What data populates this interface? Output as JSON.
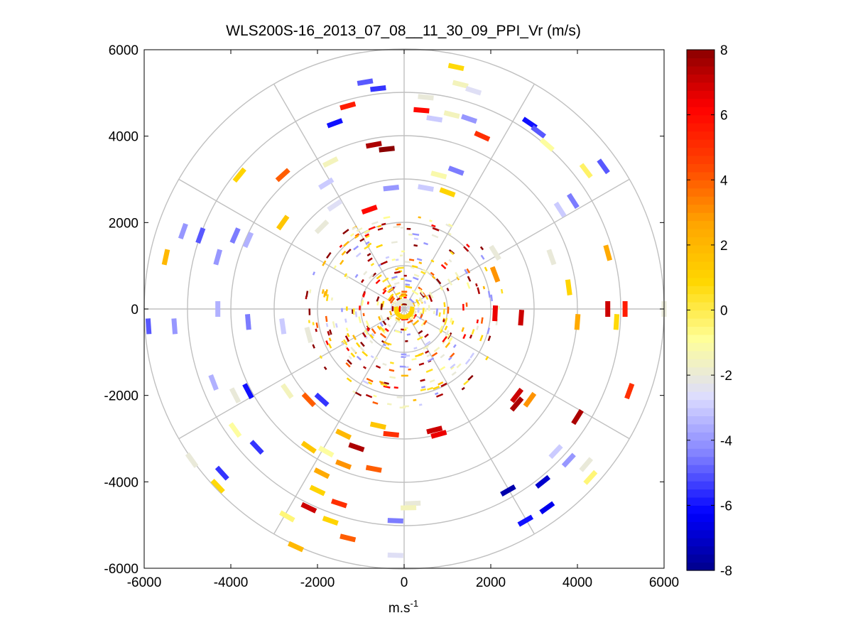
{
  "figure": {
    "background": "#ffffff"
  },
  "chart_data": {
    "type": "scatter",
    "title": "WLS200S-16_2013_07_08__11_30_09_PPI_Vr (m/s)",
    "xlabel": "m.s",
    "xlabel_sup": "-1",
    "ylabel": "",
    "xlim": [
      -6000,
      6000
    ],
    "ylim": [
      -6000,
      6000
    ],
    "xticks": [
      "-6000",
      "-4000",
      "-2000",
      "0",
      "2000",
      "4000",
      "6000"
    ],
    "yticks": [
      "6000",
      "4000",
      "2000",
      "0",
      "-2000",
      "-4000",
      "-6000"
    ],
    "grid": true,
    "polar_grid": {
      "ring_radii": [
        1000,
        2000,
        3000,
        4000,
        5000,
        6000
      ],
      "spoke_angles_deg": [
        0,
        30,
        60,
        90,
        120,
        150,
        180,
        210,
        240,
        270,
        300,
        330
      ],
      "color": "#c0c0c0"
    },
    "colorbar": {
      "min": -8,
      "max": 8,
      "ticks": [
        "8",
        "6",
        "4",
        "2",
        "0",
        "-2",
        "-4",
        "-6",
        "-8"
      ],
      "colormap": "blue-white-yellow-red",
      "stops": [
        "#00008b",
        "#0000ff",
        "#8080ff",
        "#dcdcff",
        "#ffff99",
        "#ffd700",
        "#ffa500",
        "#ff4500",
        "#ff0000",
        "#8b0000"
      ]
    },
    "point_value_units": "m/s",
    "points": [
      {
        "x": -900,
        "y": 5250,
        "v": -5
      },
      {
        "x": -600,
        "y": 5100,
        "v": -5.5
      },
      {
        "x": 1200,
        "y": 5600,
        "v": 0.8
      },
      {
        "x": 1300,
        "y": 5200,
        "v": -1.5
      },
      {
        "x": 1600,
        "y": 5050,
        "v": -2.5
      },
      {
        "x": 500,
        "y": 4900,
        "v": -2
      },
      {
        "x": 400,
        "y": 4600,
        "v": 6
      },
      {
        "x": 700,
        "y": 4400,
        "v": -3
      },
      {
        "x": 1100,
        "y": 4500,
        "v": -1.5
      },
      {
        "x": 1500,
        "y": 4400,
        "v": -4
      },
      {
        "x": -1300,
        "y": 4700,
        "v": 5.5
      },
      {
        "x": -1600,
        "y": 4300,
        "v": -6
      },
      {
        "x": -700,
        "y": 3800,
        "v": 7.5
      },
      {
        "x": -400,
        "y": 3700,
        "v": 8
      },
      {
        "x": 1800,
        "y": 4000,
        "v": 5
      },
      {
        "x": 2900,
        "y": 4300,
        "v": -6
      },
      {
        "x": 3100,
        "y": 4100,
        "v": -5
      },
      {
        "x": 3300,
        "y": 3800,
        "v": -1
      },
      {
        "x": 4600,
        "y": 3300,
        "v": -5
      },
      {
        "x": 4200,
        "y": 3200,
        "v": -0.3
      },
      {
        "x": -3800,
        "y": 3100,
        "v": 1
      },
      {
        "x": -2800,
        "y": 3100,
        "v": 4
      },
      {
        "x": -1700,
        "y": 3400,
        "v": -1.5
      },
      {
        "x": 1200,
        "y": 3200,
        "v": -4.5
      },
      {
        "x": 800,
        "y": 3100,
        "v": -1.2
      },
      {
        "x": 500,
        "y": 2800,
        "v": -3
      },
      {
        "x": -300,
        "y": 2800,
        "v": -4
      },
      {
        "x": -1800,
        "y": 2900,
        "v": -3
      },
      {
        "x": -1600,
        "y": 2400,
        "v": -2.5
      },
      {
        "x": -800,
        "y": 2300,
        "v": 6
      },
      {
        "x": 1000,
        "y": 2700,
        "v": 1
      },
      {
        "x": 3600,
        "y": 2300,
        "v": -3
      },
      {
        "x": 3900,
        "y": 2500,
        "v": -4.5
      },
      {
        "x": -5500,
        "y": 1200,
        "v": 2
      },
      {
        "x": -5100,
        "y": 1800,
        "v": -4
      },
      {
        "x": -4700,
        "y": 1700,
        "v": -5
      },
      {
        "x": -4300,
        "y": 1200,
        "v": -4
      },
      {
        "x": -3900,
        "y": 1700,
        "v": -4.5
      },
      {
        "x": -3600,
        "y": 1600,
        "v": -3.5
      },
      {
        "x": -2800,
        "y": 2000,
        "v": 1.5
      },
      {
        "x": -1900,
        "y": 1900,
        "v": -2
      },
      {
        "x": 4700,
        "y": 1300,
        "v": 2.5
      },
      {
        "x": 3400,
        "y": 1200,
        "v": -2
      },
      {
        "x": 3800,
        "y": 500,
        "v": 1
      },
      {
        "x": 2100,
        "y": 1300,
        "v": -2
      },
      {
        "x": 2100,
        "y": 800,
        "v": 3
      },
      {
        "x": 4700,
        "y": 0,
        "v": 7
      },
      {
        "x": 5100,
        "y": 0,
        "v": 5.5
      },
      {
        "x": 6000,
        "y": 0,
        "v": -2
      },
      {
        "x": 2700,
        "y": -200,
        "v": 7
      },
      {
        "x": 2100,
        "y": -100,
        "v": 6.5
      },
      {
        "x": 4000,
        "y": -300,
        "v": 2.5
      },
      {
        "x": 4900,
        "y": -300,
        "v": 0.8
      },
      {
        "x": -5900,
        "y": -400,
        "v": -5
      },
      {
        "x": -5300,
        "y": -400,
        "v": -4
      },
      {
        "x": -4300,
        "y": 0,
        "v": -3.5
      },
      {
        "x": -3600,
        "y": -300,
        "v": -4.5
      },
      {
        "x": -2800,
        "y": -400,
        "v": -3
      },
      {
        "x": -2200,
        "y": -600,
        "v": -2
      },
      {
        "x": -4400,
        "y": -1700,
        "v": -3.5
      },
      {
        "x": -3600,
        "y": -1900,
        "v": -6
      },
      {
        "x": -3900,
        "y": -2000,
        "v": -2
      },
      {
        "x": -2700,
        "y": -1900,
        "v": -1.5
      },
      {
        "x": -2200,
        "y": -2100,
        "v": 4
      },
      {
        "x": -1900,
        "y": -2100,
        "v": -5.5
      },
      {
        "x": 2600,
        "y": -2000,
        "v": 7
      },
      {
        "x": 2900,
        "y": -2100,
        "v": 3
      },
      {
        "x": 5200,
        "y": -1900,
        "v": 5
      },
      {
        "x": 4000,
        "y": -2500,
        "v": 7.5
      },
      {
        "x": -3900,
        "y": -2800,
        "v": -1
      },
      {
        "x": -3400,
        "y": -3200,
        "v": -5.5
      },
      {
        "x": -4900,
        "y": -3500,
        "v": -2
      },
      {
        "x": -4200,
        "y": -3800,
        "v": -5.5
      },
      {
        "x": -4300,
        "y": -4100,
        "v": 0.8
      },
      {
        "x": -2200,
        "y": -3200,
        "v": 1.5
      },
      {
        "x": -1800,
        "y": -3300,
        "v": -1
      },
      {
        "x": -1400,
        "y": -2900,
        "v": 2
      },
      {
        "x": -1100,
        "y": -3200,
        "v": 7.5
      },
      {
        "x": -1400,
        "y": -3600,
        "v": 3
      },
      {
        "x": -700,
        "y": -3700,
        "v": 4
      },
      {
        "x": -1900,
        "y": -3800,
        "v": 2.5
      },
      {
        "x": -2000,
        "y": -4200,
        "v": 1
      },
      {
        "x": -1500,
        "y": -4500,
        "v": 5
      },
      {
        "x": -2200,
        "y": -4600,
        "v": 7
      },
      {
        "x": -2700,
        "y": -4800,
        "v": -0.5
      },
      {
        "x": -1700,
        "y": -4900,
        "v": 1
      },
      {
        "x": -1300,
        "y": -5300,
        "v": 4
      },
      {
        "x": -2500,
        "y": -5500,
        "v": 2
      },
      {
        "x": 200,
        "y": -4500,
        "v": -2
      },
      {
        "x": -200,
        "y": -4900,
        "v": -4.5
      },
      {
        "x": -200,
        "y": -5700,
        "v": -2.5
      },
      {
        "x": 3800,
        "y": -3500,
        "v": -4
      },
      {
        "x": 4200,
        "y": -3600,
        "v": -2
      },
      {
        "x": 4300,
        "y": -3900,
        "v": -0.5
      },
      {
        "x": 3200,
        "y": -4000,
        "v": -7
      },
      {
        "x": 2400,
        "y": -4200,
        "v": -7.5
      },
      {
        "x": 3300,
        "y": -4600,
        "v": -6.5
      },
      {
        "x": 2800,
        "y": -4900,
        "v": -6
      },
      {
        "x": 3500,
        "y": -3300,
        "v": -3
      },
      {
        "x": 700,
        "y": -2800,
        "v": 7
      },
      {
        "x": 800,
        "y": -2900,
        "v": 6.5
      },
      {
        "x": -600,
        "y": -2700,
        "v": 1.5
      },
      {
        "x": -300,
        "y": -2900,
        "v": 5
      },
      {
        "x": 100,
        "y": -4600,
        "v": -1.5
      },
      {
        "x": 2600,
        "y": -2200,
        "v": 7.5
      }
    ],
    "dense_center": {
      "note": "",
      "seed": 17,
      "count": 420,
      "radius_max": 2200
    }
  }
}
